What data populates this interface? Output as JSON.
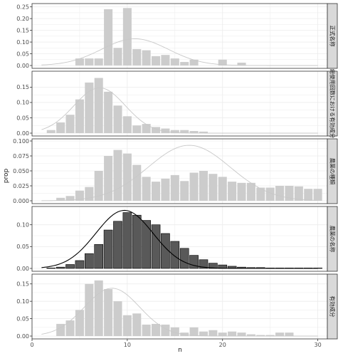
{
  "chart_data": {
    "type": "bar",
    "xlabel": "n",
    "ylabel": "prop",
    "xlim": [
      0,
      31
    ],
    "x_ticks": [
      "0",
      "10",
      "20",
      "30"
    ],
    "grid": true,
    "colors": {
      "highlight_bar": "#595959",
      "default_bar": "#cccccc",
      "highlight_curve": "#000000",
      "default_curve": "#c8c8c8",
      "panel_border": "#333333",
      "strip_fill": "#d9d9d9",
      "grid": "#ebebeb"
    },
    "panels": [
      {
        "strip": "正式名称",
        "highlight": false,
        "ylim": [
          0,
          0.255
        ],
        "y_ticks": [
          "0.00",
          "0.05",
          "0.10",
          "0.15",
          "0.20",
          "0.25"
        ],
        "curve": {
          "mean": 10.8,
          "sd": 3.5
        },
        "bars": [
          [
            5,
            0.03
          ],
          [
            6,
            0.03
          ],
          [
            7,
            0.03
          ],
          [
            8,
            0.24
          ],
          [
            9,
            0.075
          ],
          [
            10,
            0.245
          ],
          [
            11,
            0.07
          ],
          [
            12,
            0.065
          ],
          [
            13,
            0.04
          ],
          [
            14,
            0.045
          ],
          [
            15,
            0.03
          ],
          [
            16,
            0.015
          ],
          [
            17,
            0.025
          ],
          [
            20,
            0.025
          ],
          [
            22,
            0.012
          ]
        ]
      },
      {
        "strip": "総使用回数における有効成分",
        "highlight": false,
        "ylim": [
          0,
          0.195
        ],
        "y_ticks": [
          "0.00",
          "0.05",
          "0.10",
          "0.15"
        ],
        "curve": {
          "mean": 7.1,
          "sd": 2.7
        },
        "bars": [
          [
            2,
            0.01
          ],
          [
            3,
            0.035
          ],
          [
            4,
            0.06
          ],
          [
            5,
            0.11
          ],
          [
            6,
            0.165
          ],
          [
            7,
            0.18
          ],
          [
            8,
            0.135
          ],
          [
            9,
            0.09
          ],
          [
            10,
            0.055
          ],
          [
            11,
            0.025
          ],
          [
            12,
            0.03
          ],
          [
            13,
            0.02
          ],
          [
            14,
            0.015
          ],
          [
            15,
            0.01
          ],
          [
            16,
            0.01
          ],
          [
            17,
            0.007
          ],
          [
            18,
            0.005
          ]
        ]
      },
      {
        "strip": "農薬の種類",
        "highlight": false,
        "ylim": [
          0,
          0.1
        ],
        "y_ticks": [
          "0.000",
          "0.025",
          "0.050",
          "0.075",
          "0.100"
        ],
        "curve": {
          "mean": 16.5,
          "sd": 4.3
        },
        "bars": [
          [
            3,
            0.005
          ],
          [
            4,
            0.008
          ],
          [
            5,
            0.017
          ],
          [
            6,
            0.023
          ],
          [
            7,
            0.05
          ],
          [
            8,
            0.075
          ],
          [
            9,
            0.085
          ],
          [
            10,
            0.079
          ],
          [
            11,
            0.06
          ],
          [
            12,
            0.04
          ],
          [
            13,
            0.032
          ],
          [
            14,
            0.037
          ],
          [
            15,
            0.043
          ],
          [
            16,
            0.033
          ],
          [
            17,
            0.047
          ],
          [
            18,
            0.05
          ],
          [
            19,
            0.045
          ],
          [
            20,
            0.04
          ],
          [
            21,
            0.032
          ],
          [
            22,
            0.03
          ],
          [
            23,
            0.03
          ],
          [
            24,
            0.022
          ],
          [
            25,
            0.022
          ],
          [
            26,
            0.025
          ],
          [
            27,
            0.025
          ],
          [
            28,
            0.024
          ],
          [
            29,
            0.02
          ],
          [
            30,
            0.02
          ]
        ]
      },
      {
        "strip": "農薬の名称",
        "highlight": true,
        "ylim": [
          0,
          0.137
        ],
        "y_ticks": [
          "0.00",
          "0.05",
          "0.10"
        ],
        "curve": {
          "mean": 9.7,
          "sd": 3.0
        },
        "bars": [
          [
            2,
            0.001
          ],
          [
            3,
            0.003
          ],
          [
            4,
            0.009
          ],
          [
            5,
            0.018
          ],
          [
            6,
            0.034
          ],
          [
            7,
            0.055
          ],
          [
            8,
            0.088
          ],
          [
            9,
            0.108
          ],
          [
            10,
            0.128
          ],
          [
            11,
            0.122
          ],
          [
            12,
            0.11
          ],
          [
            13,
            0.1
          ],
          [
            14,
            0.08
          ],
          [
            15,
            0.062
          ],
          [
            16,
            0.046
          ],
          [
            17,
            0.03
          ],
          [
            18,
            0.02
          ],
          [
            19,
            0.012
          ],
          [
            20,
            0.008
          ],
          [
            21,
            0.005
          ],
          [
            22,
            0.003
          ],
          [
            23,
            0.002
          ],
          [
            24,
            0.002
          ],
          [
            25,
            0.001
          ],
          [
            26,
            0.001
          ],
          [
            27,
            0.001
          ],
          [
            28,
            0.001
          ],
          [
            29,
            0.001
          ],
          [
            30,
            0.001
          ]
        ]
      },
      {
        "strip": "有効成分",
        "highlight": false,
        "ylim": [
          0,
          0.172
        ],
        "y_ticks": [
          "0.00",
          "0.05",
          "0.10",
          "0.15"
        ],
        "curve": {
          "mean": 8.4,
          "sd": 2.9
        },
        "bars": [
          [
            3,
            0.035
          ],
          [
            4,
            0.045
          ],
          [
            5,
            0.075
          ],
          [
            6,
            0.15
          ],
          [
            7,
            0.16
          ],
          [
            8,
            0.135
          ],
          [
            9,
            0.1
          ],
          [
            10,
            0.06
          ],
          [
            11,
            0.065
          ],
          [
            12,
            0.033
          ],
          [
            13,
            0.035
          ],
          [
            14,
            0.033
          ],
          [
            15,
            0.025
          ],
          [
            16,
            0.01
          ],
          [
            17,
            0.025
          ],
          [
            18,
            0.013
          ],
          [
            19,
            0.017
          ],
          [
            20,
            0.01
          ],
          [
            21,
            0.013
          ],
          [
            22,
            0.01
          ],
          [
            23,
            0.005
          ],
          [
            24,
            0.003
          ],
          [
            25,
            0.003
          ],
          [
            26,
            0.01
          ],
          [
            27,
            0.01
          ]
        ]
      }
    ]
  }
}
